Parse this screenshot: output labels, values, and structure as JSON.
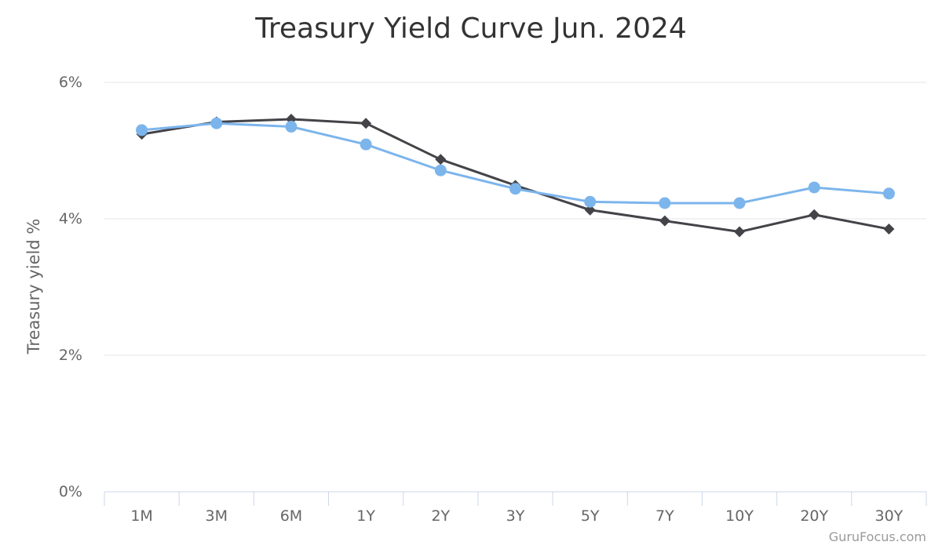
{
  "credit": "GuruFocus.com",
  "chart_data": {
    "type": "line",
    "title": "Treasury Yield Curve Jun. 2024",
    "xlabel": "",
    "ylabel": "Treasury yield %",
    "categories": [
      "1M",
      "3M",
      "6M",
      "1Y",
      "2Y",
      "3Y",
      "5Y",
      "7Y",
      "10Y",
      "20Y",
      "30Y"
    ],
    "y_ticks": [
      {
        "value": 0,
        "label": "0%"
      },
      {
        "value": 2,
        "label": "2%"
      },
      {
        "value": 4,
        "label": "4%"
      },
      {
        "value": 6,
        "label": "6%"
      }
    ],
    "ylim": [
      0,
      6
    ],
    "grid": true,
    "legend": "none",
    "series": [
      {
        "color": "#434348",
        "marker": "diamond",
        "values": [
          5.24,
          5.42,
          5.46,
          5.4,
          4.87,
          4.49,
          4.13,
          3.97,
          3.81,
          4.06,
          3.85
        ]
      },
      {
        "color": "#7cb5ec",
        "marker": "circle",
        "values": [
          5.3,
          5.4,
          5.35,
          5.09,
          4.71,
          4.44,
          4.25,
          4.23,
          4.23,
          4.46,
          4.37
        ]
      }
    ]
  }
}
